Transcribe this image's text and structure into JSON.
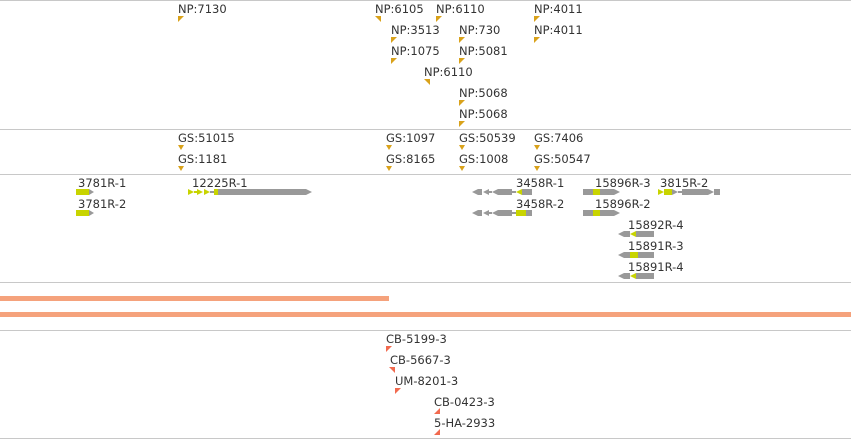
{
  "colors": {
    "np_marker": "#d9a21b",
    "gs_marker": "#d9a21b",
    "cb_marker": "#f26a4f",
    "gene_body": "#999999",
    "gene_exon": "#c8d400",
    "orange_band": "#f5a27c",
    "divider": "#c8c8c8"
  },
  "np_track": {
    "labels": [
      "NP:7130",
      "NP:6105",
      "NP:6110",
      "NP:4011",
      "NP:3513",
      "NP:730",
      "NP:4011",
      "NP:1075",
      "NP:5081",
      "NP:6110",
      "NP:5068",
      "NP:5068"
    ]
  },
  "gs_track": {
    "labels": [
      "GS:51015",
      "GS:1097",
      "GS:50539",
      "GS:7406",
      "GS:1181",
      "GS:8165",
      "GS:1008",
      "GS:50547"
    ]
  },
  "gene_track": {
    "labels": [
      "3781R-1",
      "12225R-1",
      "3458R-1",
      "15896R-3",
      "3815R-2",
      "3781R-2",
      "3458R-2",
      "15896R-2",
      "15892R-4",
      "15891R-3",
      "15891R-4"
    ]
  },
  "cb_track": {
    "labels": [
      "CB-5199-3",
      "CB-5667-3",
      "UM-8201-3",
      "CB-0423-3",
      "5-HA-2933"
    ]
  }
}
